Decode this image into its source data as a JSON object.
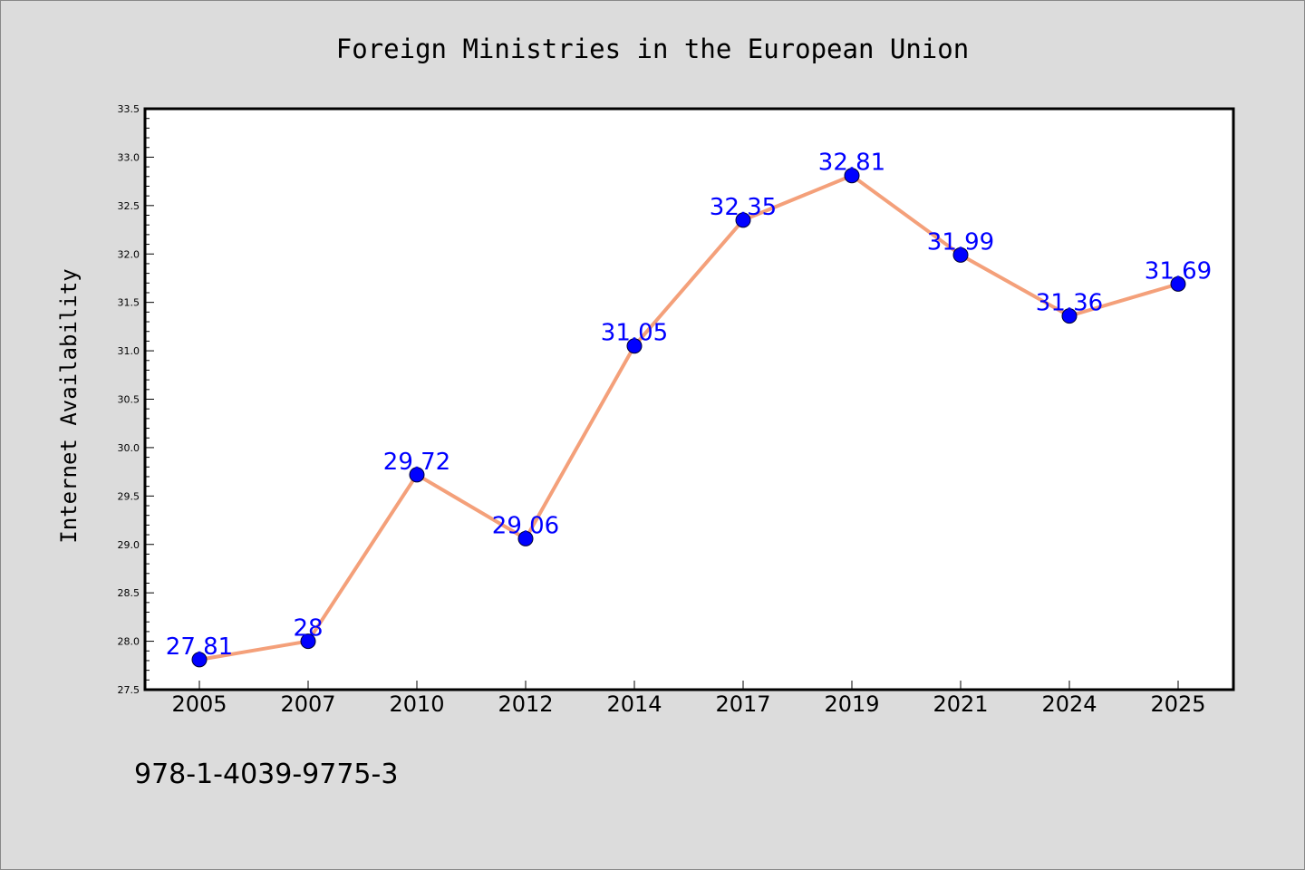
{
  "chart_data": {
    "type": "line",
    "title": "Foreign Ministries in the European Union",
    "xlabel": "",
    "ylabel": "Internet Availability",
    "categories": [
      "2005",
      "2007",
      "2010",
      "2012",
      "2014",
      "2017",
      "2019",
      "2021",
      "2024",
      "2025"
    ],
    "values": [
      27.81,
      28,
      29.72,
      29.06,
      31.05,
      32.35,
      32.81,
      31.99,
      31.36,
      31.69
    ],
    "data_labels": [
      "27.81",
      "28",
      "29.72",
      "29.06",
      "31.05",
      "32.35",
      "32.81",
      "31.99",
      "31.36",
      "31.69"
    ],
    "ylim": [
      27.5,
      33.5
    ],
    "y_ticks": [
      "27.5",
      "28.0",
      "28.5",
      "29.0",
      "29.5",
      "30.0",
      "30.5",
      "31.0",
      "31.5",
      "32.0",
      "32.5",
      "33.0",
      "33.5"
    ],
    "grid": false,
    "legend": "none",
    "line_color": "#f4a07a",
    "marker_color": "#0000ff",
    "label_color": "#0000ff"
  },
  "footer": {
    "isbn": "978-1-4039-9775-3"
  },
  "colors": {
    "background": "#dcdcdc",
    "plot_background": "#ffffff"
  }
}
